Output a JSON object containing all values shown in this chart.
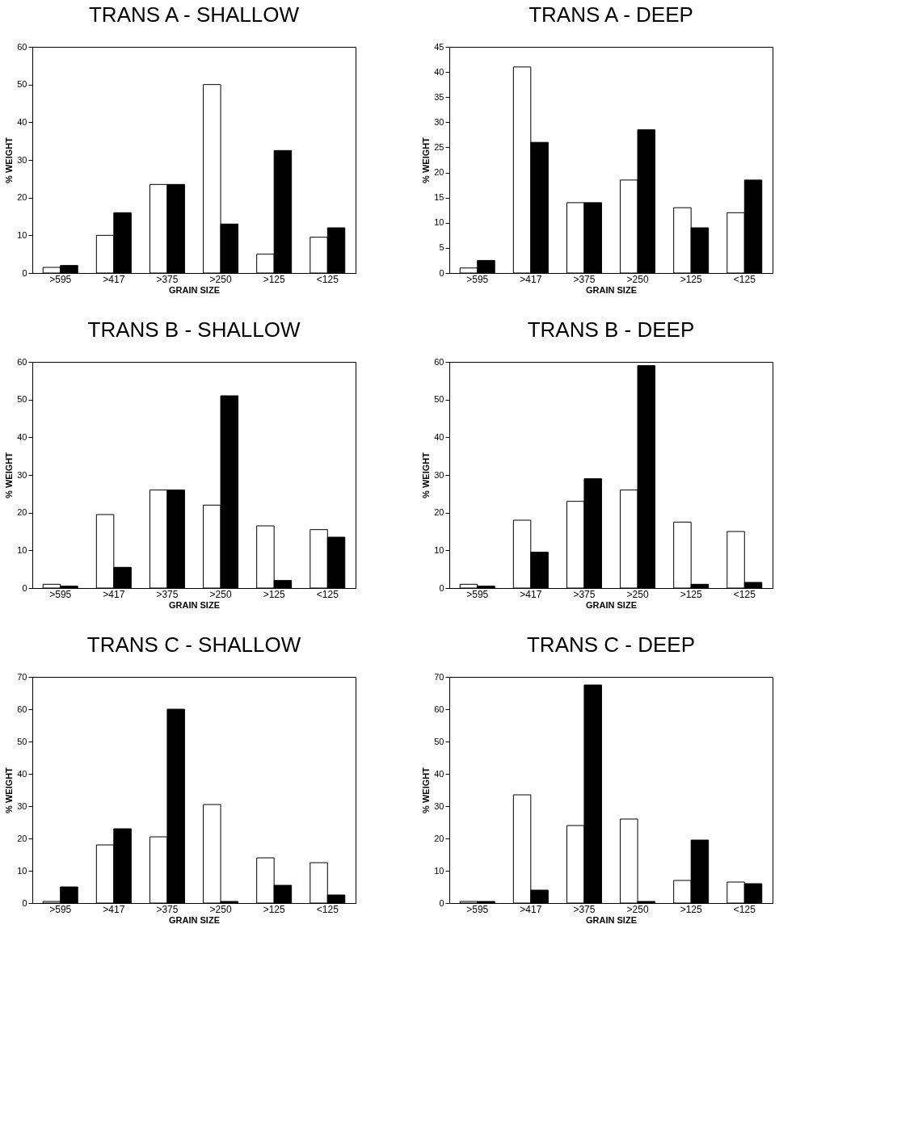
{
  "chart_data": [
    {
      "type": "bar",
      "title": "TRANS A - SHALLOW",
      "xlabel": "GRAIN SIZE",
      "ylabel": "% WEIGHT",
      "categories": [
        ">595",
        ">417",
        ">375",
        ">250",
        ">125",
        "<125"
      ],
      "ylim": [
        0,
        60
      ],
      "yticks": [
        0,
        10,
        20,
        30,
        40,
        50,
        60
      ],
      "grid": false,
      "legend": false,
      "series": [
        {
          "color": "#ffffff",
          "values": [
            1.5,
            10,
            23.5,
            50,
            5,
            9.5
          ]
        },
        {
          "color": "#000000",
          "values": [
            2,
            16,
            23.5,
            13,
            32.5,
            12
          ]
        }
      ]
    },
    {
      "type": "bar",
      "title": "TRANS A - DEEP",
      "xlabel": "GRAIN SIZE",
      "ylabel": "% WEIGHT",
      "categories": [
        ">595",
        ">417",
        ">375",
        ">250",
        ">125",
        "<125"
      ],
      "ylim": [
        0,
        45
      ],
      "yticks": [
        0,
        5,
        10,
        15,
        20,
        25,
        30,
        35,
        40,
        45
      ],
      "grid": false,
      "legend": false,
      "series": [
        {
          "color": "#ffffff",
          "values": [
            1,
            41,
            14,
            18.5,
            13,
            12
          ]
        },
        {
          "color": "#000000",
          "values": [
            2.5,
            26,
            14,
            28.5,
            9,
            18.5
          ]
        }
      ]
    },
    {
      "type": "bar",
      "title": "TRANS B - SHALLOW",
      "xlabel": "GRAIN SIZE",
      "ylabel": "% WEIGHT",
      "categories": [
        ">595",
        ">417",
        ">375",
        ">250",
        ">125",
        "<125"
      ],
      "ylim": [
        0,
        60
      ],
      "yticks": [
        0,
        10,
        20,
        30,
        40,
        50,
        60
      ],
      "grid": false,
      "legend": false,
      "series": [
        {
          "color": "#ffffff",
          "values": [
            1,
            19.5,
            26,
            22,
            16.5,
            15.5
          ]
        },
        {
          "color": "#000000",
          "values": [
            0.5,
            5.5,
            26,
            51,
            2,
            13.5
          ]
        }
      ]
    },
    {
      "type": "bar",
      "title": "TRANS B - DEEP",
      "xlabel": "GRAIN SIZE",
      "ylabel": "% WEIGHT",
      "categories": [
        ">595",
        ">417",
        ">375",
        ">250",
        ">125",
        "<125"
      ],
      "ylim": [
        0,
        60
      ],
      "yticks": [
        0,
        10,
        20,
        30,
        40,
        50,
        60
      ],
      "grid": false,
      "legend": false,
      "series": [
        {
          "color": "#ffffff",
          "values": [
            1,
            18,
            23,
            26,
            17.5,
            15
          ]
        },
        {
          "color": "#000000",
          "values": [
            0.5,
            9.5,
            29,
            59,
            1,
            1.5
          ]
        }
      ]
    },
    {
      "type": "bar",
      "title": "TRANS C - SHALLOW",
      "xlabel": "GRAIN SIZE",
      "ylabel": "% WEIGHT",
      "categories": [
        ">595",
        ">417",
        ">375",
        ">250",
        ">125",
        "<125"
      ],
      "ylim": [
        0,
        70
      ],
      "yticks": [
        0,
        10,
        20,
        30,
        40,
        50,
        60,
        70
      ],
      "grid": false,
      "legend": false,
      "series": [
        {
          "color": "#ffffff",
          "values": [
            0.5,
            18,
            20.5,
            30.5,
            14,
            12.5
          ]
        },
        {
          "color": "#000000",
          "values": [
            5,
            23,
            60,
            0.5,
            5.5,
            2.5
          ]
        }
      ]
    },
    {
      "type": "bar",
      "title": "TRANS C - DEEP",
      "xlabel": "GRAIN SIZE",
      "ylabel": "% WEIGHT",
      "categories": [
        ">595",
        ">417",
        ">375",
        ">250",
        ">125",
        "<125"
      ],
      "ylim": [
        0,
        70
      ],
      "yticks": [
        0,
        10,
        20,
        30,
        40,
        50,
        60,
        70
      ],
      "grid": false,
      "legend": false,
      "series": [
        {
          "color": "#ffffff",
          "values": [
            0.5,
            33.5,
            24,
            26,
            7,
            6.5
          ]
        },
        {
          "color": "#000000",
          "values": [
            0.5,
            4,
            67.5,
            0.5,
            19.5,
            6
          ]
        }
      ]
    }
  ]
}
